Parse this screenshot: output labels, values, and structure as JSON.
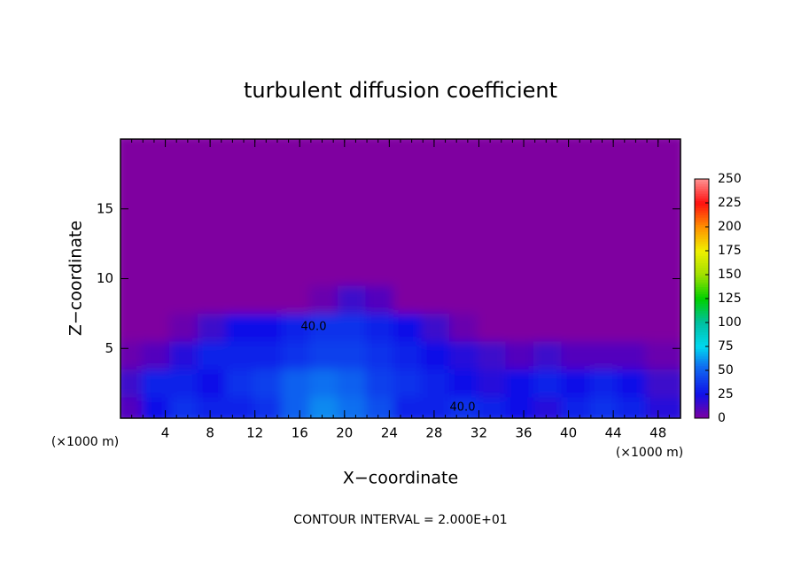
{
  "chart_data": {
    "type": "heatmap",
    "title": "turbulent diffusion coefficient",
    "x_label": "X−coordinate",
    "y_label": "Z−coordinate",
    "x_unit_labels": [
      "(×1000 m)",
      "(×1000 m)"
    ],
    "footnote": "CONTOUR INTERVAL = 2.000E+01",
    "annotations": [
      "40.0",
      "40.0"
    ],
    "xlim": [
      0,
      50
    ],
    "ylim": [
      0,
      20
    ],
    "xticks": [
      4,
      8,
      12,
      16,
      20,
      24,
      28,
      32,
      36,
      40,
      44,
      48
    ],
    "yticks": [
      5,
      10,
      15
    ],
    "x": [
      1.25,
      3.75,
      6.25,
      8.75,
      11.25,
      13.75,
      16.25,
      18.75,
      21.25,
      23.75,
      26.25,
      28.75,
      31.25,
      33.75,
      36.25,
      38.75,
      41.25,
      43.75,
      46.25,
      48.75
    ],
    "y": [
      1,
      3,
      5,
      7,
      9,
      11,
      13,
      15,
      17,
      19
    ],
    "z": [
      [
        10,
        25,
        35,
        30,
        30,
        35,
        50,
        60,
        55,
        45,
        30,
        30,
        35,
        30,
        25,
        20,
        30,
        35,
        30,
        20
      ],
      [
        15,
        30,
        30,
        25,
        35,
        40,
        50,
        55,
        50,
        40,
        35,
        30,
        25,
        20,
        25,
        30,
        25,
        30,
        25,
        15
      ],
      [
        5,
        10,
        20,
        30,
        30,
        30,
        35,
        40,
        40,
        35,
        30,
        25,
        20,
        15,
        10,
        15,
        10,
        10,
        10,
        5
      ],
      [
        0,
        0,
        5,
        15,
        25,
        25,
        30,
        35,
        35,
        30,
        25,
        15,
        5,
        0,
        0,
        0,
        0,
        0,
        0,
        0
      ],
      [
        0,
        0,
        0,
        0,
        0,
        0,
        0,
        5,
        15,
        10,
        0,
        0,
        0,
        0,
        0,
        0,
        0,
        0,
        0,
        0
      ],
      [
        0,
        0,
        0,
        0,
        0,
        0,
        0,
        0,
        0,
        0,
        0,
        0,
        0,
        0,
        0,
        0,
        0,
        0,
        0,
        0
      ],
      [
        0,
        0,
        0,
        0,
        0,
        0,
        0,
        0,
        0,
        0,
        0,
        0,
        0,
        0,
        0,
        0,
        0,
        0,
        0,
        0
      ],
      [
        0,
        0,
        0,
        0,
        0,
        0,
        0,
        0,
        0,
        0,
        0,
        0,
        0,
        0,
        0,
        0,
        0,
        0,
        0,
        0
      ],
      [
        0,
        0,
        0,
        0,
        0,
        0,
        0,
        0,
        0,
        0,
        0,
        0,
        0,
        0,
        0,
        0,
        0,
        0,
        0,
        0
      ],
      [
        0,
        0,
        0,
        0,
        0,
        0,
        0,
        0,
        0,
        0,
        0,
        0,
        0,
        0,
        0,
        0,
        0,
        0,
        0,
        0
      ]
    ],
    "zlim": [
      0,
      250
    ],
    "zticks": [
      0,
      25,
      50,
      75,
      100,
      125,
      150,
      175,
      200,
      225,
      250
    ],
    "colorscale": [
      [
        0,
        "#7f00a0"
      ],
      [
        25,
        "#1010e8"
      ],
      [
        55,
        "#1070f0"
      ],
      [
        75,
        "#00d8f0"
      ],
      [
        100,
        "#00c0a0"
      ],
      [
        125,
        "#00d000"
      ],
      [
        150,
        "#a0e000"
      ],
      [
        175,
        "#f0f000"
      ],
      [
        200,
        "#ff9000"
      ],
      [
        225,
        "#ff1010"
      ],
      [
        250,
        "#ff9090"
      ]
    ]
  }
}
